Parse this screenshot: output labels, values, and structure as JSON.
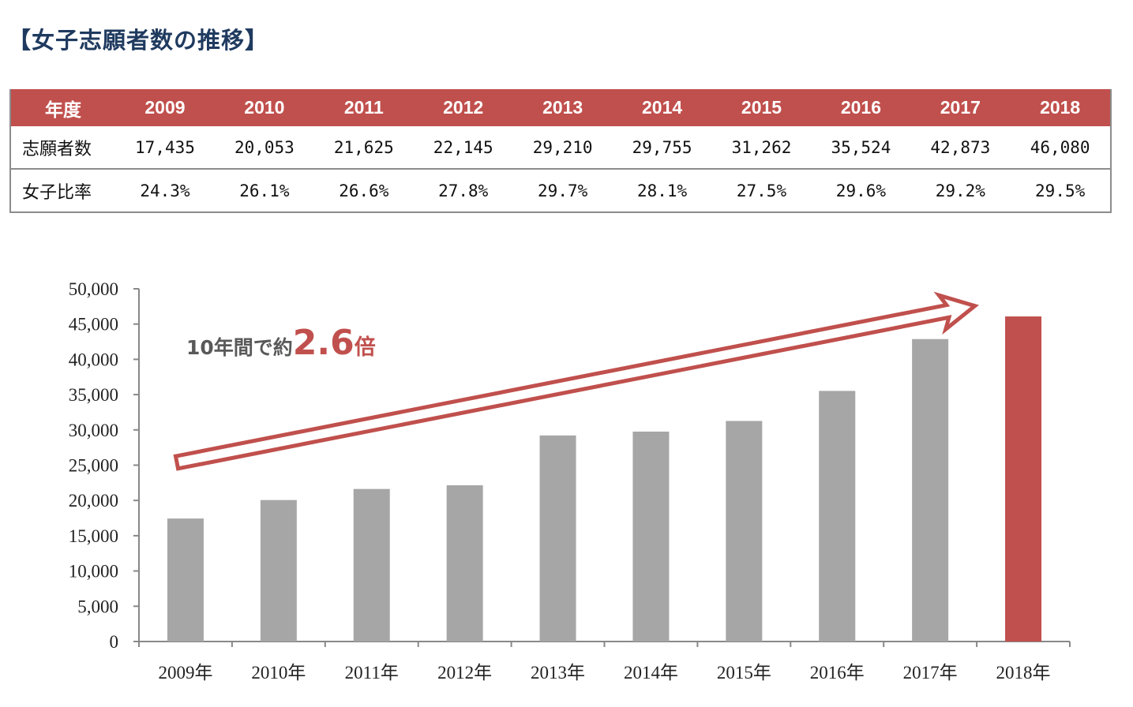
{
  "title": "【女子志願者数の推移】",
  "table": {
    "header_label": "年度",
    "years": [
      "2009",
      "2010",
      "2011",
      "2012",
      "2013",
      "2014",
      "2015",
      "2016",
      "2017",
      "2018"
    ],
    "rows": [
      {
        "label": "志願者数",
        "values": [
          "17,435",
          "20,053",
          "21,625",
          "22,145",
          "29,210",
          "29,755",
          "31,262",
          "35,524",
          "42,873",
          "46,080"
        ]
      },
      {
        "label": "女子比率",
        "values": [
          "24.3%",
          "26.1%",
          "26.6%",
          "27.8%",
          "29.7%",
          "28.1%",
          "27.5%",
          "29.6%",
          "29.2%",
          "29.5%"
        ]
      }
    ]
  },
  "chart_data": {
    "type": "bar",
    "categories": [
      "2009年",
      "2010年",
      "2011年",
      "2012年",
      "2013年",
      "2014年",
      "2015年",
      "2016年",
      "2017年",
      "2018年"
    ],
    "values": [
      17435,
      20053,
      21625,
      22145,
      29210,
      29755,
      31262,
      35524,
      42873,
      46080
    ],
    "ylim": [
      0,
      50000
    ],
    "yticks": [
      0,
      5000,
      10000,
      15000,
      20000,
      25000,
      30000,
      35000,
      40000,
      45000,
      50000
    ],
    "ytick_labels": [
      "0",
      "5,000",
      "10,000",
      "15,000",
      "20,000",
      "25,000",
      "30,000",
      "35,000",
      "40,000",
      "45,000",
      "50,000"
    ],
    "bar_color": "#a6a6a6",
    "highlight_color": "#c0504d",
    "highlight_category": "2018年",
    "grid": false,
    "annotation": {
      "prefix": "10年間で約",
      "value": "2.6",
      "suffix": "倍",
      "arrow": "upward trend arrow"
    }
  },
  "colors": {
    "accent": "#c0504d",
    "title": "#1f3a5f"
  }
}
